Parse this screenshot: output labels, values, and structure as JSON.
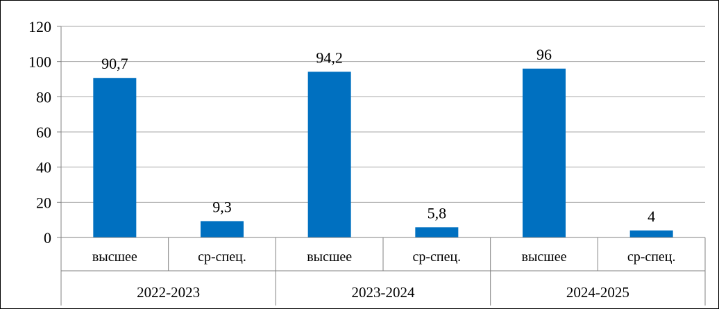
{
  "chart_data": {
    "type": "bar",
    "title": "",
    "xlabel": "",
    "ylabel": "",
    "ylim": [
      0,
      120
    ],
    "yticks": [
      0,
      20,
      40,
      60,
      80,
      100,
      120
    ],
    "grid": true,
    "legend": "none",
    "bar_color": "#0070C0",
    "grid_color": "#A6A6A6",
    "groups": [
      "2022-2023",
      "2023-2024",
      "2024-2025"
    ],
    "categories": [
      "высшее",
      "ср-спец.",
      "высшее",
      "ср-спец.",
      "высшее",
      "ср-спец."
    ],
    "values": [
      90.7,
      9.3,
      94.2,
      5.8,
      96,
      4
    ],
    "value_labels": [
      "90,7",
      "9,3",
      "94,2",
      "5,8",
      "96",
      "4"
    ]
  }
}
